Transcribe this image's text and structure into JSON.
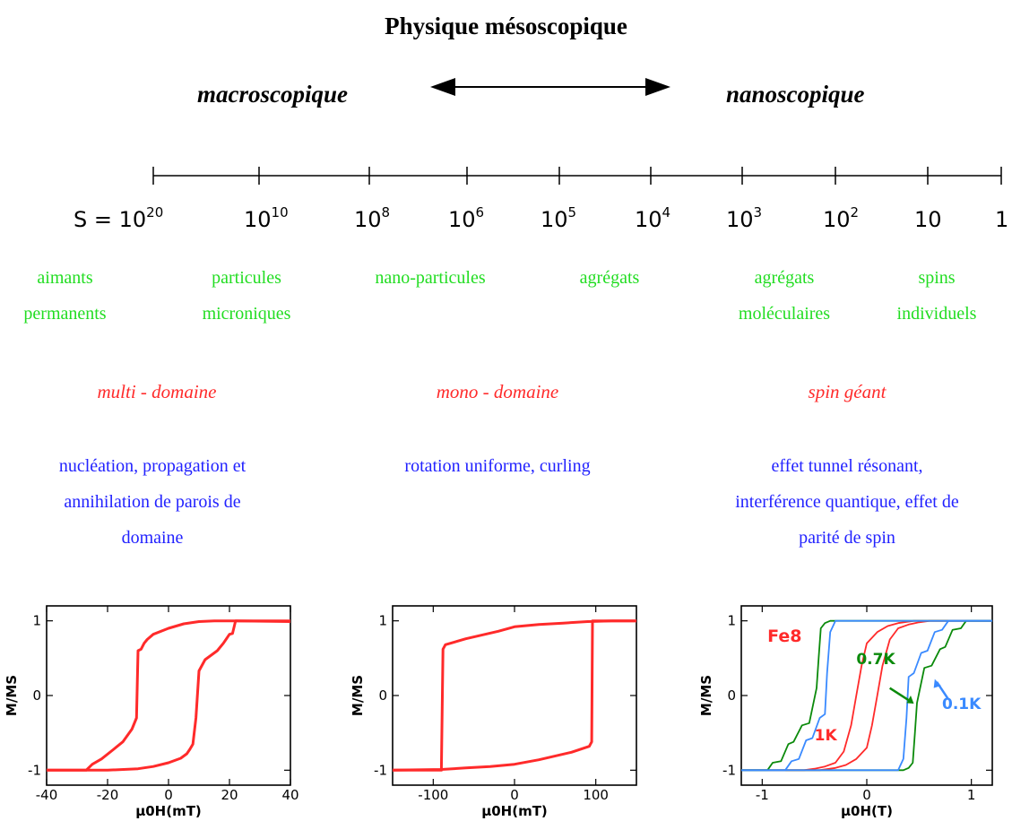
{
  "title": "Physique mésoscopique",
  "scale_left": "macroscopique",
  "scale_right": "nanoscopique",
  "axis": {
    "prefix": "S = ",
    "ticks": [
      {
        "base": "10",
        "exp": "20"
      },
      {
        "base": "10",
        "exp": "10"
      },
      {
        "base": "10",
        "exp": "8"
      },
      {
        "base": "10",
        "exp": "6"
      },
      {
        "base": "10",
        "exp": "5"
      },
      {
        "base": "10",
        "exp": "4"
      },
      {
        "base": "10",
        "exp": "3"
      },
      {
        "base": "10",
        "exp": "2"
      },
      {
        "base": "10",
        "exp": ""
      },
      {
        "base": "1",
        "exp": ""
      }
    ]
  },
  "systems": [
    {
      "line1": "aimants",
      "line2": "permanents"
    },
    {
      "line1": "particules",
      "line2": "microniques"
    },
    {
      "line1": "nano-particules",
      "line2": ""
    },
    {
      "line1": "agrégats",
      "line2": ""
    },
    {
      "line1": "agrégats",
      "line2": "moléculaires"
    },
    {
      "line1": "spins",
      "line2": "individuels"
    }
  ],
  "regimes": [
    "multi - domaine",
    "mono - domaine",
    "spin géant"
  ],
  "mechanisms": [
    {
      "lines": [
        "nucléation, propagation et",
        "annihilation de parois de",
        "domaine"
      ]
    },
    {
      "lines": [
        "rotation uniforme, curling"
      ]
    },
    {
      "lines": [
        "effet tunnel résonant,",
        "interférence quantique, effet de",
        "parité de spin"
      ]
    }
  ],
  "colors": {
    "green": "#22dd22",
    "red": "#ff2a2a",
    "blue": "#2222ff",
    "dark_green": "#0b8a0b",
    "light_blue": "#3a8aff"
  },
  "chart_data": [
    {
      "type": "line",
      "xlabel": "μ0H(mT)",
      "ylabel": "M/MS",
      "xlim": [
        -40,
        40
      ],
      "ylim": [
        -1.2,
        1.2
      ],
      "xticks": [
        "-40",
        "-20",
        "0",
        "20",
        "40"
      ],
      "yticks": [
        "-1",
        "0",
        "1"
      ],
      "series": [
        {
          "color": "#ff2a2a",
          "x": [
            -40,
            -27,
            -25,
            -22,
            -18,
            -15,
            -12,
            -10.5,
            -10,
            -9,
            -8,
            -7,
            -5,
            0,
            5,
            10,
            15,
            18,
            20,
            21,
            22,
            40
          ],
          "y": [
            -1,
            -1,
            -0.92,
            -0.85,
            -0.72,
            -0.62,
            -0.45,
            -0.3,
            0.6,
            0.62,
            0.7,
            0.75,
            0.82,
            0.9,
            0.96,
            0.99,
            1,
            1,
            1,
            1,
            1,
            0.99
          ]
        },
        {
          "color": "#ff2a2a",
          "x": [
            40,
            22,
            21,
            20,
            18,
            16,
            12,
            10,
            9,
            8,
            7,
            6,
            4,
            0,
            -5,
            -10,
            -20,
            -40
          ],
          "y": [
            1,
            1,
            0.83,
            0.82,
            0.7,
            0.6,
            0.48,
            0.33,
            -0.3,
            -0.65,
            -0.72,
            -0.78,
            -0.84,
            -0.9,
            -0.95,
            -0.98,
            -1,
            -1
          ]
        }
      ]
    },
    {
      "type": "line",
      "xlabel": "μ0H(mT)",
      "ylabel": "M/MS",
      "xlim": [
        -150,
        150
      ],
      "ylim": [
        -1.2,
        1.2
      ],
      "xticks": [
        "-100",
        "0",
        "100"
      ],
      "yticks": [
        "-1",
        "0",
        "1"
      ],
      "series": [
        {
          "color": "#ff2a2a",
          "x": [
            -150,
            -90,
            -88,
            -85,
            -60,
            -20,
            0,
            30,
            60,
            90,
            120,
            150
          ],
          "y": [
            -1,
            -1,
            0.62,
            0.68,
            0.76,
            0.86,
            0.92,
            0.95,
            0.97,
            0.99,
            1,
            1
          ]
        },
        {
          "color": "#ff2a2a",
          "x": [
            150,
            96,
            95,
            92,
            70,
            30,
            0,
            -30,
            -60,
            -90,
            -150
          ],
          "y": [
            1,
            1,
            -0.62,
            -0.68,
            -0.76,
            -0.86,
            -0.92,
            -0.95,
            -0.97,
            -0.99,
            -1
          ]
        }
      ]
    },
    {
      "type": "line",
      "xlabel": "μ0H(T)",
      "ylabel": "M/MS",
      "xlim": [
        -1.2,
        1.2
      ],
      "ylim": [
        -1.2,
        1.2
      ],
      "xticks": [
        "-1",
        "0",
        "1"
      ],
      "yticks": [
        "-1",
        "0",
        "1"
      ],
      "annotations": [
        {
          "text": "Fe8",
          "color": "#ff2a2a"
        },
        {
          "text": "0.7K",
          "color": "#0b8a0b"
        },
        {
          "text": "1K",
          "color": "#ff2a2a"
        },
        {
          "text": "0.1K",
          "color": "#3a8aff"
        }
      ],
      "series": [
        {
          "color": "#ff2a2a",
          "x": [
            -1.2,
            -0.6,
            -0.5,
            -0.4,
            -0.3,
            -0.22,
            -0.15,
            -0.1,
            -0.05,
            0,
            0.1,
            0.2,
            0.3,
            0.45,
            0.6,
            1.2
          ],
          "y": [
            -1,
            -1,
            -0.98,
            -0.95,
            -0.9,
            -0.75,
            -0.4,
            0,
            0.4,
            0.7,
            0.85,
            0.93,
            0.97,
            1,
            1,
            1
          ]
        },
        {
          "color": "#ff2a2a",
          "x": [
            1.2,
            0.6,
            0.5,
            0.4,
            0.3,
            0.22,
            0.15,
            0.1,
            0.05,
            0,
            -0.1,
            -0.2,
            -0.3,
            -0.45,
            -0.6,
            -1.2
          ],
          "y": [
            1,
            1,
            0.98,
            0.95,
            0.9,
            0.75,
            0.4,
            0,
            -0.4,
            -0.7,
            -0.85,
            -0.93,
            -0.97,
            -1,
            -1,
            -1
          ]
        },
        {
          "color": "#0b8a0b",
          "x": [
            -1.2,
            -0.95,
            -0.9,
            -0.82,
            -0.75,
            -0.7,
            -0.62,
            -0.55,
            -0.48,
            -0.46,
            -0.44,
            -0.4,
            -0.35,
            0,
            1.2
          ],
          "y": [
            -1,
            -1,
            -0.9,
            -0.88,
            -0.65,
            -0.62,
            -0.4,
            -0.37,
            0.1,
            0.5,
            0.9,
            0.97,
            1,
            1,
            1
          ]
        },
        {
          "color": "#0b8a0b",
          "x": [
            1.2,
            0.95,
            0.9,
            0.82,
            0.75,
            0.7,
            0.62,
            0.55,
            0.48,
            0.46,
            0.44,
            0.4,
            0.35,
            0,
            -1.2
          ],
          "y": [
            1,
            1,
            0.9,
            0.88,
            0.65,
            0.62,
            0.4,
            0.37,
            -0.1,
            -0.5,
            -0.9,
            -0.97,
            -1,
            -1,
            -1
          ]
        },
        {
          "color": "#3a8aff",
          "x": [
            -1.2,
            -0.78,
            -0.72,
            -0.65,
            -0.58,
            -0.52,
            -0.45,
            -0.4,
            -0.38,
            -0.35,
            -0.3,
            0,
            1.2
          ],
          "y": [
            -1,
            -1,
            -0.88,
            -0.85,
            -0.6,
            -0.57,
            -0.3,
            -0.25,
            0.3,
            0.85,
            1,
            1,
            1
          ]
        },
        {
          "color": "#3a8aff",
          "x": [
            1.2,
            0.78,
            0.72,
            0.65,
            0.58,
            0.52,
            0.45,
            0.4,
            0.38,
            0.35,
            0.3,
            0,
            -1.2
          ],
          "y": [
            1,
            1,
            0.88,
            0.85,
            0.6,
            0.57,
            0.3,
            0.25,
            -0.3,
            -0.85,
            -1,
            -1,
            -1
          ]
        }
      ]
    }
  ]
}
